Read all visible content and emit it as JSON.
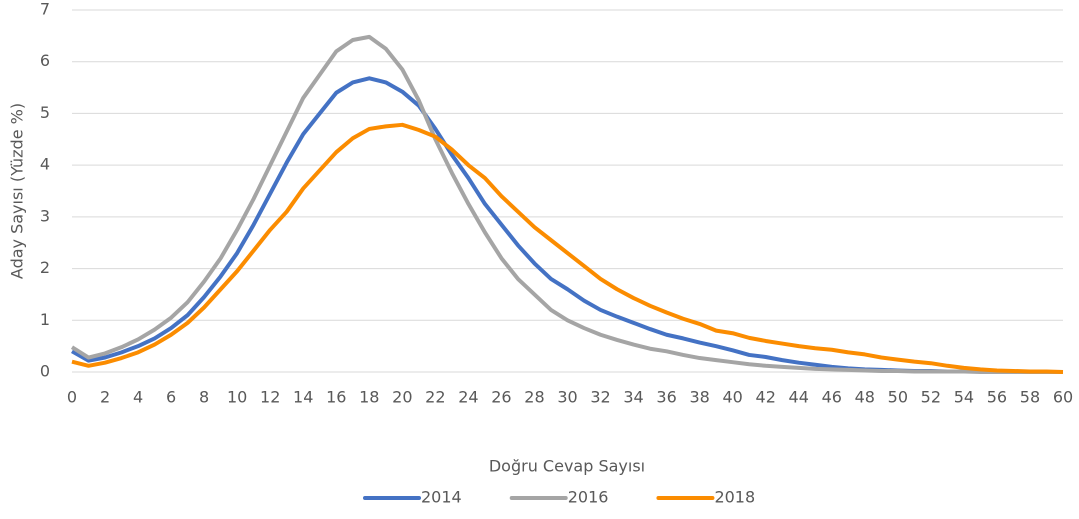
{
  "chart_data": {
    "type": "line",
    "x_label": "Doğru Cevap Sayısı",
    "y_label": "Aday Sayısı (Yüzde %)",
    "x": [
      0,
      1,
      2,
      3,
      4,
      5,
      6,
      7,
      8,
      9,
      10,
      11,
      12,
      13,
      14,
      15,
      16,
      17,
      18,
      19,
      20,
      21,
      22,
      23,
      24,
      25,
      26,
      27,
      28,
      29,
      30,
      31,
      32,
      33,
      34,
      35,
      36,
      37,
      38,
      39,
      40,
      41,
      42,
      43,
      44,
      45,
      46,
      47,
      48,
      49,
      50,
      51,
      52,
      53,
      54,
      55,
      56,
      57,
      58,
      59,
      60
    ],
    "series": [
      {
        "name": "2014",
        "color": "#4472c4",
        "values": [
          0.4,
          0.22,
          0.28,
          0.38,
          0.5,
          0.65,
          0.85,
          1.1,
          1.45,
          1.85,
          2.3,
          2.85,
          3.45,
          4.05,
          4.6,
          5.0,
          5.4,
          5.6,
          5.68,
          5.6,
          5.42,
          5.15,
          4.7,
          4.2,
          3.75,
          3.25,
          2.85,
          2.45,
          2.1,
          1.8,
          1.6,
          1.38,
          1.2,
          1.07,
          0.95,
          0.83,
          0.72,
          0.65,
          0.57,
          0.5,
          0.42,
          0.33,
          0.29,
          0.23,
          0.18,
          0.14,
          0.1,
          0.07,
          0.05,
          0.04,
          0.03,
          0.02,
          0.02,
          0.01,
          0.01,
          0.01,
          0,
          0,
          0,
          0,
          0
        ]
      },
      {
        "name": "2016",
        "color": "#a5a5a5",
        "values": [
          0.48,
          0.28,
          0.36,
          0.48,
          0.63,
          0.82,
          1.05,
          1.35,
          1.75,
          2.2,
          2.75,
          3.35,
          4.0,
          4.65,
          5.3,
          5.75,
          6.2,
          6.42,
          6.48,
          6.25,
          5.85,
          5.25,
          4.5,
          3.85,
          3.25,
          2.7,
          2.2,
          1.8,
          1.5,
          1.2,
          1.0,
          0.85,
          0.72,
          0.62,
          0.53,
          0.45,
          0.4,
          0.33,
          0.27,
          0.23,
          0.19,
          0.15,
          0.12,
          0.1,
          0.08,
          0.06,
          0.05,
          0.04,
          0.03,
          0.02,
          0.02,
          0.01,
          0.01,
          0.01,
          0.01,
          0,
          0,
          0,
          0,
          0,
          0
        ]
      },
      {
        "name": "2018",
        "color": "#fb8c00",
        "values": [
          0.2,
          0.12,
          0.18,
          0.27,
          0.38,
          0.53,
          0.72,
          0.95,
          1.25,
          1.6,
          1.95,
          2.35,
          2.75,
          3.1,
          3.55,
          3.9,
          4.25,
          4.52,
          4.7,
          4.75,
          4.78,
          4.68,
          4.55,
          4.3,
          4.0,
          3.75,
          3.4,
          3.1,
          2.8,
          2.55,
          2.3,
          2.05,
          1.8,
          1.6,
          1.43,
          1.28,
          1.15,
          1.03,
          0.93,
          0.8,
          0.75,
          0.66,
          0.6,
          0.55,
          0.5,
          0.46,
          0.43,
          0.38,
          0.34,
          0.28,
          0.24,
          0.2,
          0.17,
          0.12,
          0.08,
          0.05,
          0.03,
          0.02,
          0.01,
          0.01,
          0
        ]
      }
    ],
    "xlim": [
      0,
      60
    ],
    "xticks": [
      0,
      2,
      4,
      6,
      8,
      10,
      12,
      14,
      16,
      18,
      20,
      22,
      24,
      26,
      28,
      30,
      32,
      34,
      36,
      38,
      40,
      42,
      44,
      46,
      48,
      50,
      52,
      54,
      56,
      58,
      60
    ],
    "ylim": [
      0,
      7
    ],
    "yticks": [
      0,
      1,
      2,
      3,
      4,
      5,
      6,
      7
    ],
    "grid": true,
    "legend": "bottom"
  }
}
